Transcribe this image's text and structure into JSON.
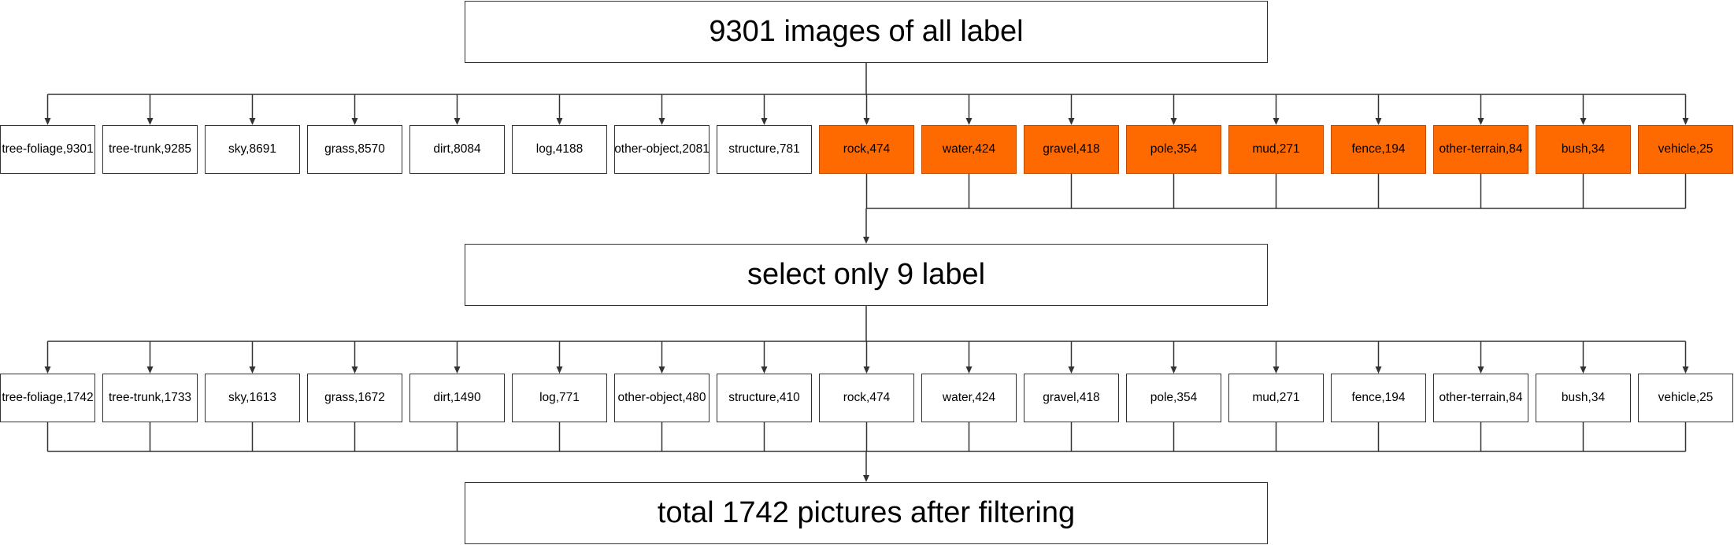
{
  "top_box": {
    "text": "9301 images of all label"
  },
  "middle_box": {
    "text": "select only 9 label"
  },
  "bottom_box": {
    "text": "total 1742 pictures after filtering"
  },
  "colors": {
    "highlight": "#ff6a00",
    "line": "#333333"
  },
  "row1": [
    {
      "label": "tree-foliage,9301",
      "highlighted": false
    },
    {
      "label": "tree-trunk,9285",
      "highlighted": false
    },
    {
      "label": "sky,8691",
      "highlighted": false
    },
    {
      "label": "grass,8570",
      "highlighted": false
    },
    {
      "label": "dirt,8084",
      "highlighted": false
    },
    {
      "label": "log,4188",
      "highlighted": false
    },
    {
      "label": "other-object,2081",
      "highlighted": false
    },
    {
      "label": "structure,781",
      "highlighted": false
    },
    {
      "label": "rock,474",
      "highlighted": true
    },
    {
      "label": "water,424",
      "highlighted": true
    },
    {
      "label": "gravel,418",
      "highlighted": true
    },
    {
      "label": "pole,354",
      "highlighted": true
    },
    {
      "label": "mud,271",
      "highlighted": true
    },
    {
      "label": "fence,194",
      "highlighted": true
    },
    {
      "label": "other-terrain,84",
      "highlighted": true
    },
    {
      "label": "bush,34",
      "highlighted": true
    },
    {
      "label": "vehicle,25",
      "highlighted": true
    }
  ],
  "row2": [
    {
      "label": "tree-foliage,1742"
    },
    {
      "label": "tree-trunk,1733"
    },
    {
      "label": "sky,1613"
    },
    {
      "label": "grass,1672"
    },
    {
      "label": "dirt,1490"
    },
    {
      "label": "log,771"
    },
    {
      "label": "other-object,480"
    },
    {
      "label": "structure,410"
    },
    {
      "label": "rock,474"
    },
    {
      "label": "water,424"
    },
    {
      "label": "gravel,418"
    },
    {
      "label": "pole,354"
    },
    {
      "label": "mud,271"
    },
    {
      "label": "fence,194"
    },
    {
      "label": "other-terrain,84"
    },
    {
      "label": "bush,34"
    },
    {
      "label": "vehicle,25"
    }
  ]
}
